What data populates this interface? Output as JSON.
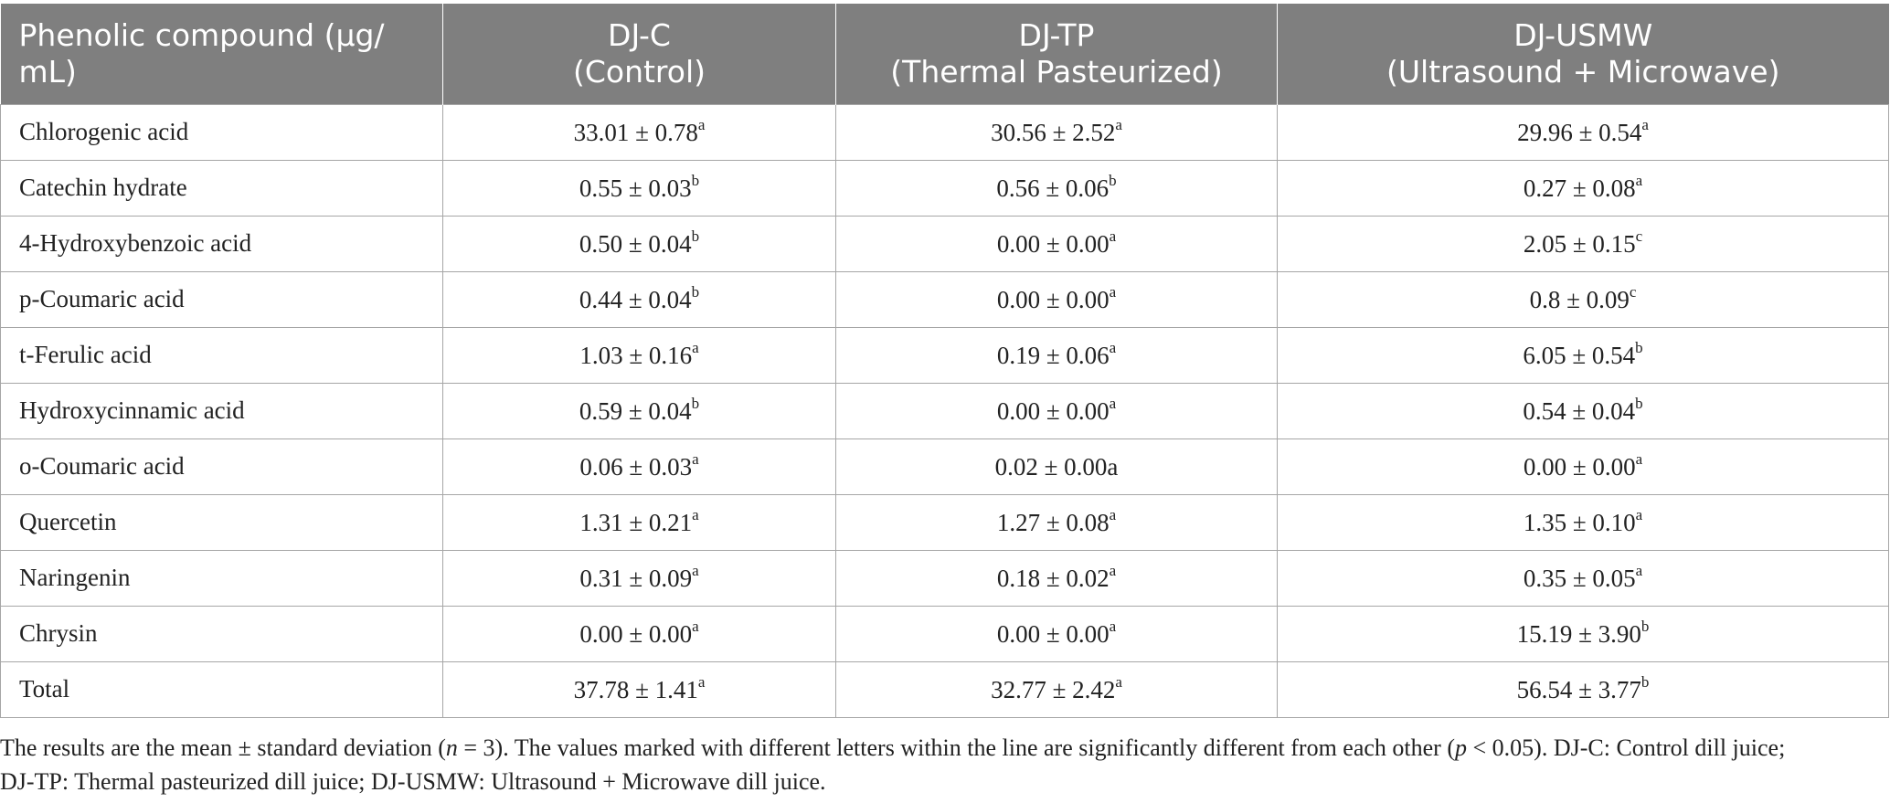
{
  "table": {
    "headers": [
      {
        "line1": "Phenolic compound (μg/",
        "line2": "mL)"
      },
      {
        "line1": "DJ-C",
        "line2": "(Control)"
      },
      {
        "line1": "DJ-TP",
        "line2": "(Thermal Pasteurized)"
      },
      {
        "line1": "DJ-USMW",
        "line2": "(Ultrasound + Microwave)"
      }
    ],
    "rows": [
      {
        "label": "Chlorogenic acid",
        "cells": [
          {
            "v": "33.01 ± 0.78",
            "s": "a"
          },
          {
            "v": "30.56 ± 2.52",
            "s": "a"
          },
          {
            "v": "29.96 ± 0.54",
            "s": "a"
          }
        ]
      },
      {
        "label": "Catechin hydrate",
        "cells": [
          {
            "v": "0.55 ± 0.03",
            "s": "b"
          },
          {
            "v": "0.56 ± 0.06",
            "s": "b"
          },
          {
            "v": "0.27 ± 0.08",
            "s": "a"
          }
        ]
      },
      {
        "label": "4-Hydroxybenzoic acid",
        "cells": [
          {
            "v": "0.50 ± 0.04",
            "s": "b"
          },
          {
            "v": "0.00 ± 0.00",
            "s": "a"
          },
          {
            "v": "2.05 ± 0.15",
            "s": "c"
          }
        ]
      },
      {
        "label": "p-Coumaric acid",
        "cells": [
          {
            "v": "0.44 ± 0.04",
            "s": "b"
          },
          {
            "v": "0.00 ± 0.00",
            "s": "a"
          },
          {
            "v": "0.8 ± 0.09",
            "s": "c"
          }
        ]
      },
      {
        "label": "t-Ferulic acid",
        "cells": [
          {
            "v": "1.03 ± 0.16",
            "s": "a"
          },
          {
            "v": "0.19 ± 0.06",
            "s": "a"
          },
          {
            "v": "6.05 ± 0.54",
            "s": "b"
          }
        ]
      },
      {
        "label": "Hydroxycinnamic acid",
        "cells": [
          {
            "v": "0.59 ± 0.04",
            "s": "b"
          },
          {
            "v": "0.00 ± 0.00",
            "s": "a"
          },
          {
            "v": "0.54 ± 0.04",
            "s": "b"
          }
        ]
      },
      {
        "label": "o-Coumaric acid",
        "cells": [
          {
            "v": "0.06 ± 0.03",
            "s": "a"
          },
          {
            "v": "0.02 ± 0.00a",
            "s": ""
          },
          {
            "v": "0.00 ± 0.00",
            "s": "a"
          }
        ]
      },
      {
        "label": "Quercetin",
        "cells": [
          {
            "v": "1.31 ± 0.21",
            "s": "a"
          },
          {
            "v": "1.27 ± 0.08",
            "s": "a"
          },
          {
            "v": "1.35 ± 0.10",
            "s": "a"
          }
        ]
      },
      {
        "label": "Naringenin",
        "cells": [
          {
            "v": "0.31 ± 0.09",
            "s": "a"
          },
          {
            "v": "0.18 ± 0.02",
            "s": "a"
          },
          {
            "v": "0.35 ± 0.05",
            "s": "a"
          }
        ]
      },
      {
        "label": "Chrysin",
        "cells": [
          {
            "v": "0.00 ± 0.00",
            "s": "a"
          },
          {
            "v": "0.00 ± 0.00",
            "s": "a"
          },
          {
            "v": "15.19 ± 3.90",
            "s": "b"
          }
        ]
      },
      {
        "label": "Total",
        "cells": [
          {
            "v": "37.78 ± 1.41",
            "s": "a"
          },
          {
            "v": "32.77 ± 2.42",
            "s": "a"
          },
          {
            "v": "56.54 ± 3.77",
            "s": "b"
          }
        ]
      }
    ]
  },
  "footnote": {
    "t1": "The results are the mean ± standard deviation (",
    "n_var": "n",
    "t2": " = 3). The values marked with different letters within the line are significantly different from each other (",
    "p_var": "p",
    "t3": " < 0.05). DJ-C: Control dill juice;",
    "line2": "DJ-TP: Thermal pasteurized dill juice; DJ-USMW: Ultrasound + Microwave dill juice."
  }
}
